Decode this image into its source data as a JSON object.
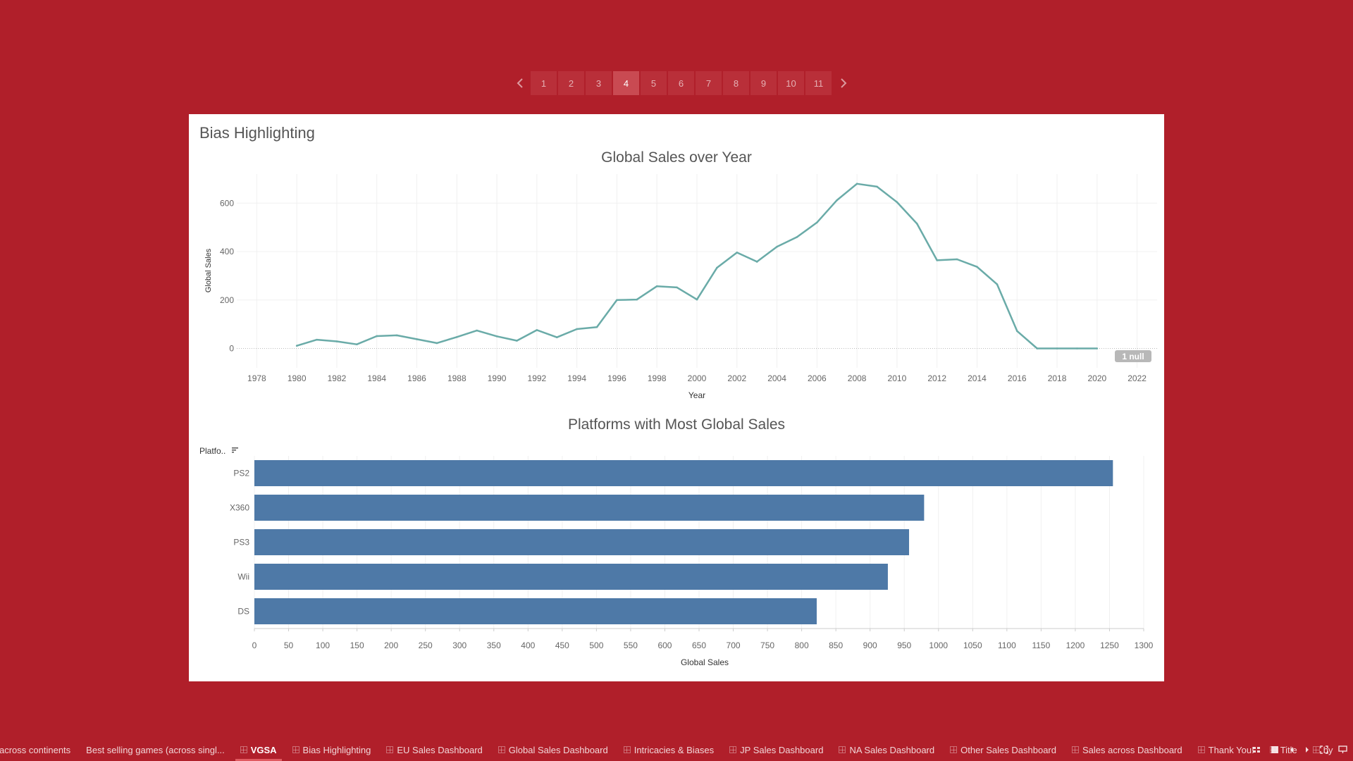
{
  "pager": {
    "pages": [
      "1",
      "2",
      "3",
      "4",
      "5",
      "6",
      "7",
      "8",
      "9",
      "10",
      "11"
    ],
    "active_index": 3,
    "prev_icon": "chevron-left-icon",
    "next_icon": "chevron-right-icon"
  },
  "story": {
    "title": "Bias Highlighting"
  },
  "colors": {
    "background": "#b01f2a",
    "line": "#6aaba8",
    "bar": "#4e79a7",
    "null_badge": "#b8b8b8"
  },
  "chart_data": [
    {
      "type": "line",
      "title": "Global Sales over Year",
      "xlabel": "Year",
      "ylabel": "Global Sales",
      "x": [
        1980,
        1981,
        1982,
        1983,
        1984,
        1985,
        1986,
        1987,
        1988,
        1989,
        1990,
        1991,
        1992,
        1993,
        1994,
        1995,
        1996,
        1997,
        1998,
        1999,
        2000,
        2001,
        2002,
        2003,
        2004,
        2005,
        2006,
        2007,
        2008,
        2009,
        2010,
        2011,
        2012,
        2013,
        2014,
        2015,
        2016,
        2017,
        2018,
        2019,
        2020
      ],
      "y": [
        11,
        36,
        29,
        17,
        51,
        54,
        38,
        22,
        47,
        74,
        50,
        32,
        76,
        46,
        80,
        88,
        200,
        202,
        257,
        252,
        202,
        333,
        396,
        358,
        420,
        460,
        520,
        612,
        680,
        668,
        604,
        515,
        364,
        368,
        337,
        265,
        72,
        0,
        0,
        0,
        0
      ],
      "xticks": [
        "1978",
        "1980",
        "1982",
        "1984",
        "1986",
        "1988",
        "1990",
        "1992",
        "1994",
        "1996",
        "1998",
        "2000",
        "2002",
        "2004",
        "2006",
        "2008",
        "2010",
        "2012",
        "2014",
        "2016",
        "2018",
        "2020",
        "2022"
      ],
      "yticks": [
        "0",
        "200",
        "400",
        "600"
      ],
      "xlim": [
        1977,
        2023
      ],
      "ylim": [
        -80,
        720
      ],
      "null_indicator": "1 null",
      "grid": true
    },
    {
      "type": "bar",
      "orientation": "horizontal",
      "title": "Platforms with Most Global Sales",
      "axis_header": "Platfo..",
      "sort_icon": "sort-descending-icon",
      "categories": [
        "PS2",
        "X360",
        "PS3",
        "Wii",
        "DS"
      ],
      "values": [
        1255,
        979,
        957,
        926,
        822
      ],
      "xlabel": "Global Sales",
      "xticks": [
        "0",
        "50",
        "100",
        "150",
        "200",
        "250",
        "300",
        "350",
        "400",
        "450",
        "500",
        "550",
        "600",
        "650",
        "700",
        "750",
        "800",
        "850",
        "900",
        "950",
        "1000",
        "1050",
        "1100",
        "1150",
        "1200",
        "1250",
        "1300"
      ],
      "xlim": [
        0,
        1300
      ],
      "grid": true
    }
  ],
  "tabs": [
    {
      "label": "across continents",
      "icon": "",
      "active": false
    },
    {
      "label": "Best selling games (across singl...",
      "icon": "",
      "active": false
    },
    {
      "label": "VGSA",
      "icon": "dashboard-icon",
      "active": true
    },
    {
      "label": "Bias Highlighting",
      "icon": "dashboard-icon",
      "active": false
    },
    {
      "label": "EU Sales Dashboard",
      "icon": "dashboard-icon",
      "active": false
    },
    {
      "label": "Global Sales Dashboard",
      "icon": "dashboard-icon",
      "active": false
    },
    {
      "label": "Intricacies & Biases",
      "icon": "dashboard-icon",
      "active": false
    },
    {
      "label": "JP Sales Dashboard",
      "icon": "dashboard-icon",
      "active": false
    },
    {
      "label": "NA Sales Dashboard",
      "icon": "dashboard-icon",
      "active": false
    },
    {
      "label": "Other Sales Dashboard",
      "icon": "dashboard-icon",
      "active": false
    },
    {
      "label": "Sales across Dashboard",
      "icon": "dashboard-icon",
      "active": false
    },
    {
      "label": "Thank You!",
      "icon": "dashboard-icon",
      "active": false
    },
    {
      "label": "Title",
      "icon": "dashboard-icon",
      "active": false
    },
    {
      "label": "by",
      "icon": "dashboard-icon",
      "active": false
    }
  ],
  "tab_controls": [
    "sheet-sorter-icon",
    "filmstrip-icon",
    "scroll-left-icon",
    "scroll-right-icon",
    "fullscreen-icon",
    "present-icon"
  ]
}
